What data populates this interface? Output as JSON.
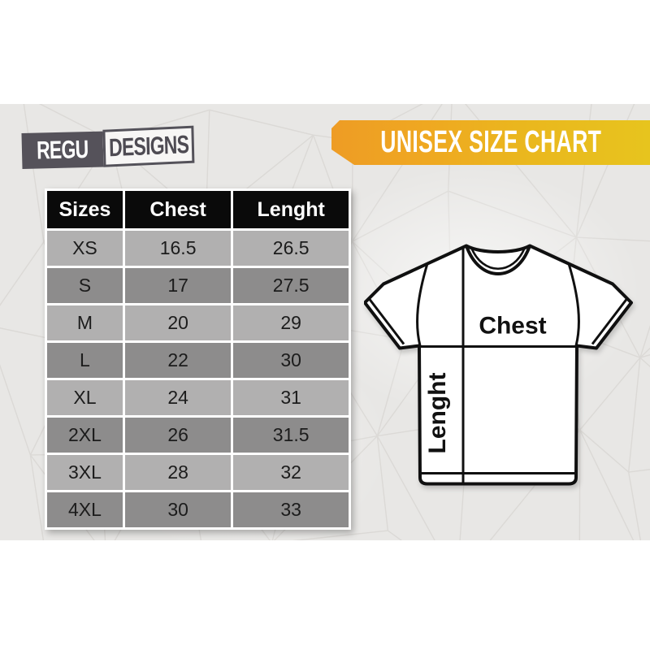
{
  "brand": {
    "name_part1": "REGU",
    "name_part2": "DESIGNS"
  },
  "banner": {
    "title": "UNISEX SIZE CHART"
  },
  "size_table": {
    "columns": [
      "Sizes",
      "Chest",
      "Lenght"
    ],
    "rows": [
      {
        "size": "XS",
        "chest": "16.5",
        "length": "26.5"
      },
      {
        "size": "S",
        "chest": "17",
        "length": "27.5"
      },
      {
        "size": "M",
        "chest": "20",
        "length": "29"
      },
      {
        "size": "L",
        "chest": "22",
        "length": "30"
      },
      {
        "size": "XL",
        "chest": "24",
        "length": "31"
      },
      {
        "size": "2XL",
        "chest": "26",
        "length": "31.5"
      },
      {
        "size": "3XL",
        "chest": "28",
        "length": "32"
      },
      {
        "size": "4XL",
        "chest": "30",
        "length": "33"
      }
    ]
  },
  "tshirt": {
    "chest_label": "Chest",
    "length_label": "Lenght"
  },
  "colors": {
    "banner_orange": "#ee9c25",
    "banner_yellow": "#e7c41e",
    "table_header_bg": "#0a0a0a",
    "row_light": "#b1b0b0",
    "row_dark": "#8d8c8c",
    "logo_dark": "#55525a",
    "band_background": "#e8e7e5"
  },
  "chart_data": {
    "type": "table",
    "title": "UNISEX SIZE CHART",
    "columns": [
      "Sizes",
      "Chest",
      "Lenght"
    ],
    "rows": [
      [
        "XS",
        16.5,
        26.5
      ],
      [
        "S",
        17,
        27.5
      ],
      [
        "M",
        20,
        29
      ],
      [
        "L",
        22,
        30
      ],
      [
        "XL",
        24,
        31
      ],
      [
        "2XL",
        26,
        31.5
      ],
      [
        "3XL",
        28,
        32
      ],
      [
        "4XL",
        30,
        33
      ]
    ]
  }
}
